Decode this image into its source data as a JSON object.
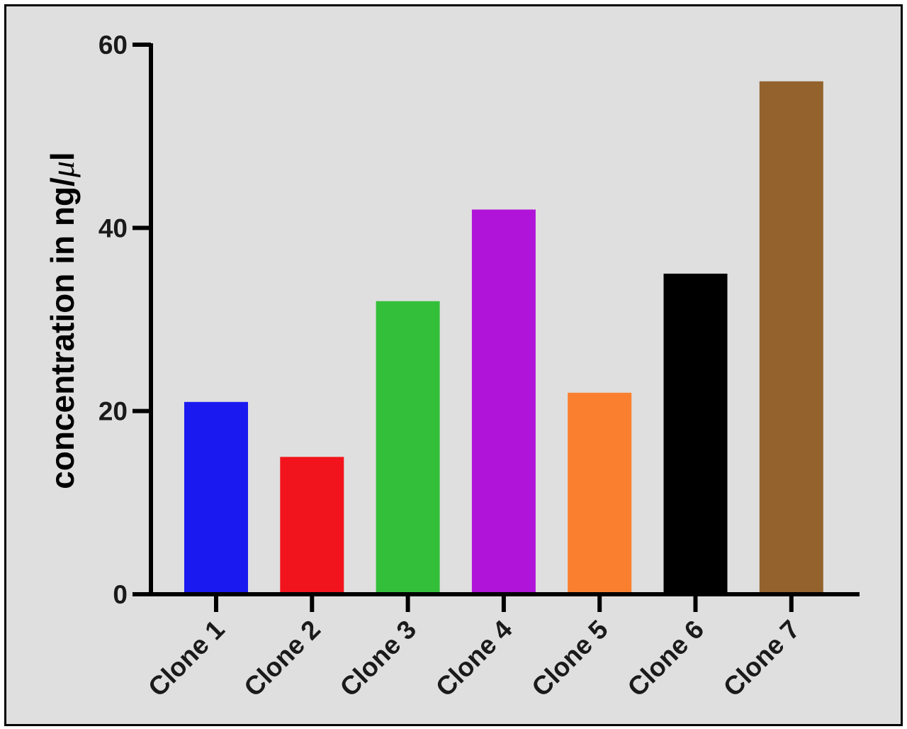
{
  "chart_data": {
    "type": "bar",
    "categories": [
      "Clone 1",
      "Clone 2",
      "Clone 3",
      "Clone 4",
      "Clone 5",
      "Clone 6",
      "Clone 7"
    ],
    "values": [
      21,
      15,
      32,
      42,
      22,
      35,
      56
    ],
    "colors": [
      "#1a1af0",
      "#f2141c",
      "#34bf3a",
      "#b014d8",
      "#fa8030",
      "#000000",
      "#94622c"
    ],
    "title": "",
    "xlabel": "",
    "ylabel": "concentration in ng/μl",
    "ylabel_parts": {
      "prefix": "concentration in ng/",
      "mu": "μ",
      "suffix": "l"
    },
    "ylim": [
      0,
      60
    ],
    "yticks": [
      "0",
      "20",
      "40",
      "60"
    ],
    "grid": false,
    "legend": "none"
  }
}
